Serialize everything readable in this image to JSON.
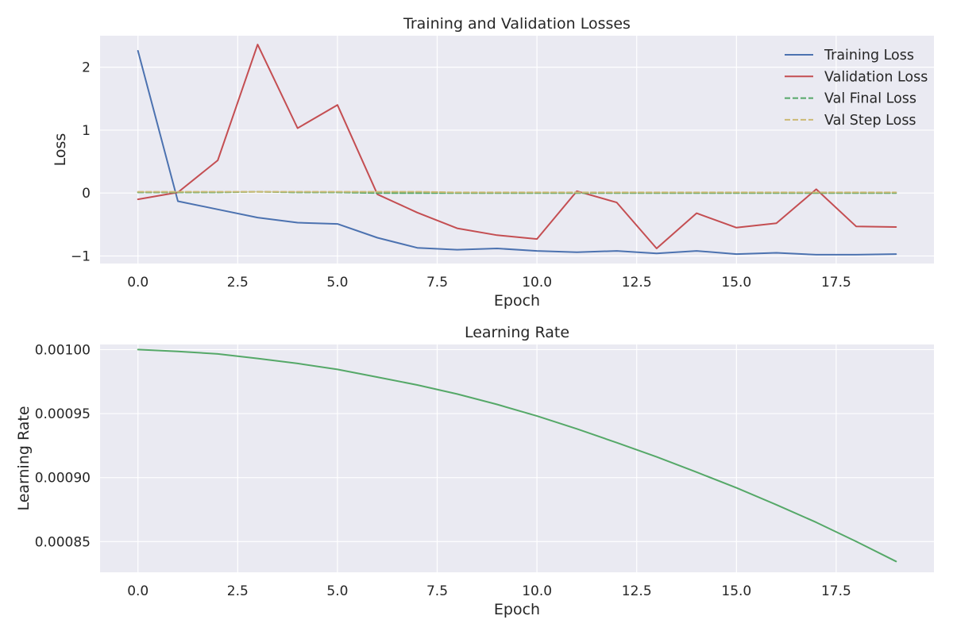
{
  "chart_data": [
    {
      "type": "line",
      "title": "Training and Validation Losses",
      "xlabel": "Epoch",
      "ylabel": "Loss",
      "xlim": [
        -0.95,
        19.95
      ],
      "ylim": [
        -1.12,
        2.5
      ],
      "xticks": [
        0,
        2.5,
        5,
        7.5,
        10,
        12.5,
        15,
        17.5
      ],
      "xtick_labels": [
        "0.0",
        "2.5",
        "5.0",
        "7.5",
        "10.0",
        "12.5",
        "15.0",
        "17.5"
      ],
      "yticks": [
        2,
        1,
        0,
        -1
      ],
      "ytick_labels": [
        "2",
        "1",
        "0",
        "−1"
      ],
      "grid": true,
      "legend": "top-right",
      "x": [
        0,
        1,
        2,
        3,
        4,
        5,
        6,
        7,
        8,
        9,
        10,
        11,
        12,
        13,
        14,
        15,
        16,
        17,
        18,
        19
      ],
      "series": [
        {
          "name": "Training Loss",
          "color": "#4c72b0",
          "dash": "solid",
          "values": [
            2.26,
            -0.13,
            -0.26,
            -0.39,
            -0.47,
            -0.49,
            -0.71,
            -0.87,
            -0.9,
            -0.88,
            -0.92,
            -0.94,
            -0.92,
            -0.96,
            -0.92,
            -0.97,
            -0.95,
            -0.98,
            -0.98,
            -0.97
          ]
        },
        {
          "name": "Validation Loss",
          "color": "#c44e52",
          "dash": "solid",
          "values": [
            -0.1,
            0.01,
            0.52,
            2.36,
            1.03,
            1.4,
            -0.02,
            -0.31,
            -0.56,
            -0.67,
            -0.73,
            0.03,
            -0.15,
            -0.88,
            -0.32,
            -0.55,
            -0.48,
            0.06,
            -0.53,
            -0.54
          ]
        },
        {
          "name": "Val Final Loss",
          "color": "#55a868",
          "dash": "dashed",
          "values": [
            0.01,
            0.01,
            0.01,
            0.02,
            0.01,
            0.01,
            0.0,
            0.0,
            0.0,
            0.0,
            0.0,
            0.0,
            0.0,
            0.0,
            0.0,
            0.0,
            0.0,
            0.0,
            0.0,
            0.0
          ]
        },
        {
          "name": "Val Step Loss",
          "color": "#ccb974",
          "dash": "dashed",
          "values": [
            0.02,
            0.02,
            0.02,
            0.02,
            0.02,
            0.02,
            0.02,
            0.02,
            0.01,
            0.01,
            0.01,
            0.01,
            0.01,
            0.01,
            0.01,
            0.01,
            0.01,
            0.01,
            0.01,
            0.01
          ]
        }
      ]
    },
    {
      "type": "line",
      "title": "Learning Rate",
      "xlabel": "Epoch",
      "ylabel": "Learning Rate",
      "xlim": [
        -0.95,
        19.95
      ],
      "ylim": [
        0.000826,
        0.001004
      ],
      "xticks": [
        0,
        2.5,
        5,
        7.5,
        10,
        12.5,
        15,
        17.5
      ],
      "xtick_labels": [
        "0.0",
        "2.5",
        "5.0",
        "7.5",
        "10.0",
        "12.5",
        "15.0",
        "17.5"
      ],
      "yticks": [
        0.001,
        0.00095,
        0.0009,
        0.00085
      ],
      "ytick_labels": [
        "0.00100",
        "0.00095",
        "0.00090",
        "0.00085"
      ],
      "grid": true,
      "x": [
        0,
        1,
        2,
        3,
        4,
        5,
        6,
        7,
        8,
        9,
        10,
        11,
        12,
        13,
        14,
        15,
        16,
        17,
        18,
        19
      ],
      "series": [
        {
          "color": "#55a868",
          "dash": "solid",
          "values": [
            0.001,
            0.0009986,
            0.0009966,
            0.0009931,
            0.0009892,
            0.0009845,
            0.0009785,
            0.0009724,
            0.0009653,
            0.0009572,
            0.0009481,
            0.0009381,
            0.0009273,
            0.0009162,
            0.0009043,
            0.000892,
            0.0008788,
            0.000865,
            0.0008501,
            0.0008345
          ]
        }
      ]
    }
  ]
}
